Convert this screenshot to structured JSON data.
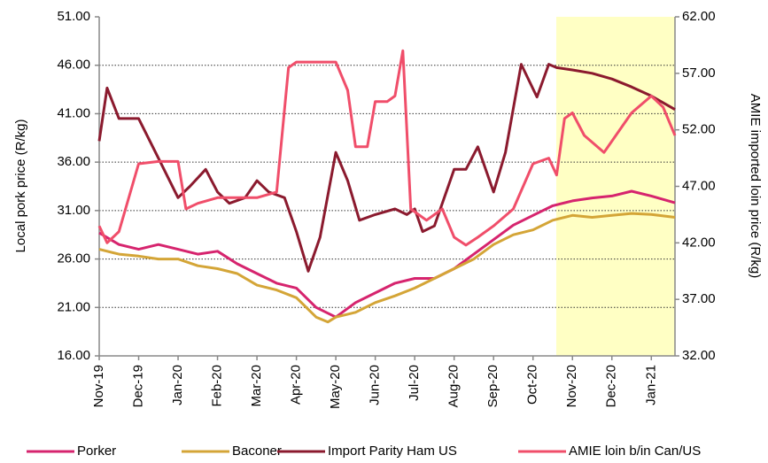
{
  "chart_data": {
    "type": "line",
    "ylabel": "Local pork price (R/kg)",
    "y2label": "AMIE imported loin price (R/kg)",
    "ylim": [
      16,
      51
    ],
    "yticks": [
      {
        "value": 16,
        "label": "16.00"
      },
      {
        "value": 21,
        "label": "21.00"
      },
      {
        "value": 26,
        "label": "26.00"
      },
      {
        "value": 31,
        "label": "31.00"
      },
      {
        "value": 36,
        "label": "36.00"
      },
      {
        "value": 41,
        "label": "41.00"
      },
      {
        "value": 46,
        "label": "46.00"
      },
      {
        "value": 51,
        "label": "51.00"
      }
    ],
    "y2lim": [
      32,
      62
    ],
    "y2ticks": [
      {
        "value": 32,
        "label": "32.00"
      },
      {
        "value": 37,
        "label": "37.00"
      },
      {
        "value": 42,
        "label": "42.00"
      },
      {
        "value": 47,
        "label": "47.00"
      },
      {
        "value": 52,
        "label": "52.00"
      },
      {
        "value": 57,
        "label": "57.00"
      },
      {
        "value": 62,
        "label": "62.00"
      }
    ],
    "xlim": [
      0,
      14.6
    ],
    "xticks": [
      {
        "value": 0,
        "label": "Nov-19"
      },
      {
        "value": 1,
        "label": "Dec-19"
      },
      {
        "value": 2,
        "label": "Jan-20"
      },
      {
        "value": 3,
        "label": "Feb-20"
      },
      {
        "value": 4,
        "label": "Mar-20"
      },
      {
        "value": 5,
        "label": "Apr-20"
      },
      {
        "value": 6,
        "label": "May-20"
      },
      {
        "value": 7,
        "label": "Jun-20"
      },
      {
        "value": 8,
        "label": "Jul-20"
      },
      {
        "value": 9,
        "label": "Aug-20"
      },
      {
        "value": 10,
        "label": "Sep-20"
      },
      {
        "value": 11,
        "label": "Oct-20"
      },
      {
        "value": 12,
        "label": "Nov-20"
      },
      {
        "value": 13,
        "label": "Dec-20"
      },
      {
        "value": 14,
        "label": "Jan-21"
      }
    ],
    "grid": true,
    "legend": "bottom",
    "series": [
      {
        "name": "Porker",
        "color": "#d6246e",
        "x": [
          0,
          0.5,
          1,
          1.5,
          2,
          2.5,
          3,
          3.5,
          4,
          4.5,
          5,
          5.5,
          6,
          6.5,
          7,
          7.5,
          8,
          8.5,
          9,
          9.5,
          10,
          10.5,
          11,
          11.5,
          12,
          12.5,
          13,
          13.5,
          14,
          14.6
        ],
        "values": [
          28.7,
          27.5,
          27.0,
          27.5,
          27.0,
          26.5,
          26.8,
          25.5,
          24.5,
          23.5,
          23.0,
          21.0,
          20.0,
          21.5,
          22.5,
          23.5,
          24.0,
          24.0,
          25.0,
          26.5,
          28.0,
          29.5,
          30.5,
          31.5,
          32.0,
          32.3,
          32.5,
          33.0,
          32.5,
          31.8
        ]
      },
      {
        "name": "Baconer",
        "color": "#d4a537",
        "x": [
          0,
          0.5,
          1,
          1.5,
          2,
          2.5,
          3,
          3.5,
          4,
          4.5,
          5,
          5.5,
          5.8,
          6,
          6.5,
          7,
          7.5,
          8,
          8.5,
          9,
          9.5,
          10,
          10.5,
          11,
          11.5,
          12,
          12.5,
          13,
          13.5,
          14,
          14.6
        ],
        "values": [
          27.0,
          26.5,
          26.3,
          26.0,
          26.0,
          25.3,
          25.0,
          24.5,
          23.3,
          22.8,
          22.0,
          20.0,
          19.5,
          20.0,
          20.5,
          21.5,
          22.2,
          23.0,
          24.0,
          25.0,
          26.0,
          27.5,
          28.5,
          29.0,
          30.0,
          30.5,
          30.3,
          30.5,
          30.7,
          30.6,
          30.3
        ]
      },
      {
        "name": "Import Parity Ham US",
        "color": "#8b1a2e",
        "axis": "y2",
        "x": [
          0,
          0.2,
          0.5,
          1,
          1.5,
          2,
          2.3,
          2.7,
          3,
          3.3,
          3.7,
          4,
          4.3,
          4.7,
          5,
          5.3,
          5.6,
          6,
          6.3,
          6.6,
          7,
          7.5,
          7.8,
          8,
          8.2,
          8.5,
          9,
          9.3,
          9.6,
          10,
          10.3,
          10.7,
          11.1,
          11.4,
          11.6,
          12,
          12.5,
          13,
          13.5,
          14,
          14.6
        ],
        "values": [
          51.0,
          55.7,
          53.0,
          53.0,
          49.5,
          46.0,
          47.0,
          48.5,
          46.5,
          45.5,
          46.0,
          47.5,
          46.5,
          46.0,
          43.0,
          39.5,
          42.5,
          50.0,
          47.5,
          44.0,
          44.5,
          45.0,
          44.5,
          45.0,
          43.0,
          43.5,
          48.5,
          48.5,
          50.5,
          46.5,
          50.0,
          57.8,
          54.9,
          57.8,
          57.5,
          57.3,
          57.0,
          56.5,
          55.8,
          55.0,
          53.8
        ]
      },
      {
        "name": "AMIE loin b/in Can/US",
        "color": "#f04e6a",
        "axis": "y2",
        "x": [
          0,
          0.2,
          0.5,
          1,
          1.5,
          2,
          2.2,
          2.5,
          3,
          3.5,
          4,
          4.5,
          4.8,
          5,
          5.5,
          6,
          6.3,
          6.5,
          6.8,
          7,
          7.3,
          7.5,
          7.7,
          7.9,
          8.3,
          8.7,
          9,
          9.3,
          9.6,
          10,
          10.5,
          11,
          11.4,
          11.6,
          11.8,
          12,
          12.3,
          12.8,
          13,
          13.5,
          14,
          14.3,
          14.6
        ],
        "values": [
          43.5,
          42.0,
          43.0,
          49.0,
          49.2,
          49.2,
          45.0,
          45.5,
          46.0,
          46.0,
          46.0,
          46.5,
          57.5,
          58.0,
          58.0,
          58.0,
          55.5,
          50.5,
          50.5,
          54.5,
          54.5,
          55.0,
          59.0,
          45.0,
          44.0,
          45.0,
          42.5,
          41.8,
          42.5,
          43.5,
          45.0,
          49.0,
          49.5,
          48.0,
          53.0,
          53.5,
          51.5,
          50.0,
          51.0,
          53.5,
          55.0,
          54.0,
          51.5
        ]
      }
    ]
  }
}
